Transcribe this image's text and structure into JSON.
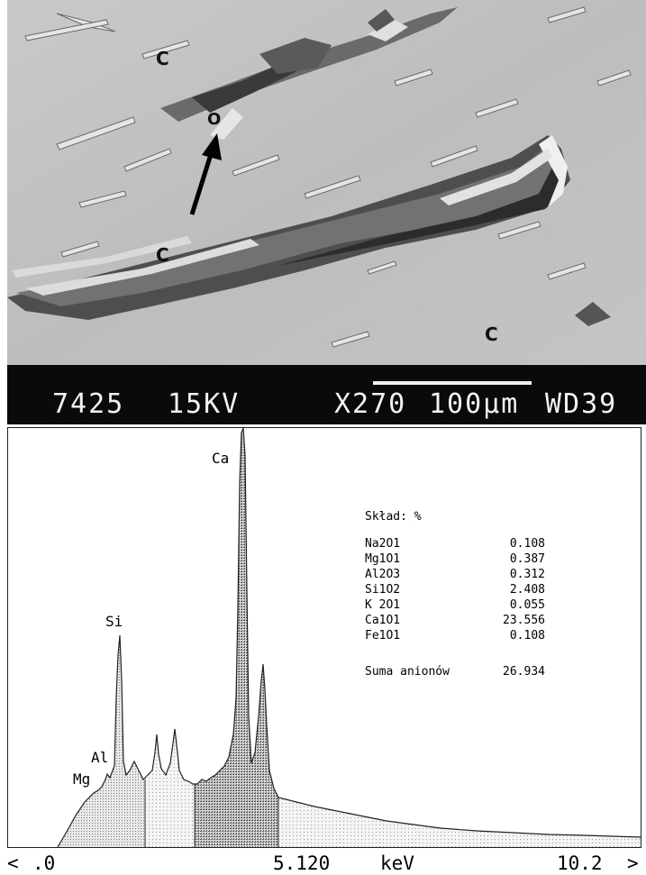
{
  "micrograph": {
    "labels": {
      "c_top": "C",
      "c_left": "C",
      "c_bottom": "C",
      "o_marker": "O"
    }
  },
  "info_bar": {
    "photo_number": "7425",
    "voltage": "15KV",
    "magnification": "X270",
    "scale": "100µm",
    "working_distance": "WD39"
  },
  "spectrum": {
    "peaks": {
      "ca": "Ca",
      "si": "Si",
      "al": "Al",
      "mg": "Mg"
    },
    "composition": {
      "title": "Skład: %",
      "rows": [
        {
          "name": "Na2O1",
          "value": "0.108"
        },
        {
          "name": "Mg1O1",
          "value": "0.387"
        },
        {
          "name": "Al2O3",
          "value": "0.312"
        },
        {
          "name": "Si1O2",
          "value": "2.408"
        },
        {
          "name": "K 2O1",
          "value": "0.055"
        },
        {
          "name": "Ca1O1",
          "value": "23.556"
        },
        {
          "name": "Fe1O1",
          "value": "0.108"
        }
      ],
      "sum_label": "Suma anionów",
      "sum_value": "26.934"
    },
    "axis": {
      "left_arrow": "<",
      "start": ".0",
      "mid": "5.120",
      "unit": "keV",
      "end": "10.2",
      "right_arrow": ">"
    }
  }
}
